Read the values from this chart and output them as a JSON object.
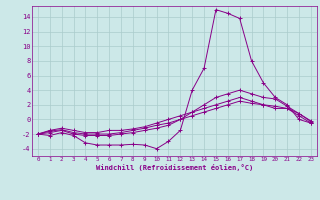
{
  "background_color": "#cce8e8",
  "grid_color": "#aacccc",
  "line_color": "#880088",
  "title": "Windchill (Refroidissement éolien,°C)",
  "xlim": [
    -0.5,
    23.5
  ],
  "ylim": [
    -5,
    15.5
  ],
  "xticks": [
    0,
    1,
    2,
    3,
    4,
    5,
    6,
    7,
    8,
    9,
    10,
    11,
    12,
    13,
    14,
    15,
    16,
    17,
    18,
    19,
    20,
    21,
    22,
    23
  ],
  "yticks": [
    -4,
    -2,
    0,
    2,
    4,
    6,
    8,
    10,
    12,
    14
  ],
  "series": [
    {
      "x": [
        0,
        1,
        2,
        3,
        4,
        5,
        6,
        7,
        8,
        9,
        10,
        11,
        12,
        13,
        14,
        15,
        16,
        17,
        18,
        19,
        20,
        21,
        22,
        23
      ],
      "y": [
        -2,
        -2.2,
        -1.8,
        -2.2,
        -3.2,
        -3.5,
        -3.5,
        -3.5,
        -3.4,
        -3.5,
        -4,
        -3,
        -1.5,
        4,
        7,
        15,
        14.5,
        13.8,
        8,
        5,
        3,
        2,
        0,
        -0.5
      ]
    },
    {
      "x": [
        0,
        1,
        2,
        3,
        4,
        5,
        6,
        7,
        8,
        9,
        10,
        11,
        12,
        13,
        14,
        15,
        16,
        17,
        18,
        19,
        20,
        21,
        22,
        23
      ],
      "y": [
        -2,
        -1.8,
        -1.5,
        -2,
        -2.2,
        -2.2,
        -2.2,
        -2.0,
        -1.8,
        -1.5,
        -1.2,
        -0.8,
        0,
        1,
        2,
        3,
        3.5,
        4,
        3.5,
        3,
        2.8,
        1.8,
        0.8,
        -0.3
      ]
    },
    {
      "x": [
        0,
        1,
        2,
        3,
        4,
        5,
        6,
        7,
        8,
        9,
        10,
        11,
        12,
        13,
        14,
        15,
        16,
        17,
        18,
        19,
        20,
        21,
        22,
        23
      ],
      "y": [
        -2,
        -1.6,
        -1.4,
        -1.8,
        -2.0,
        -2.0,
        -2.0,
        -1.8,
        -1.5,
        -1.2,
        -0.8,
        -0.5,
        0,
        0.5,
        1.0,
        1.5,
        2.0,
        2.5,
        2.2,
        2.0,
        1.8,
        1.5,
        0.8,
        -0.2
      ]
    },
    {
      "x": [
        0,
        1,
        2,
        3,
        4,
        5,
        6,
        7,
        8,
        9,
        10,
        11,
        12,
        13,
        14,
        15,
        16,
        17,
        18,
        19,
        20,
        21,
        22,
        23
      ],
      "y": [
        -2,
        -1.5,
        -1.2,
        -1.5,
        -1.8,
        -1.8,
        -1.5,
        -1.5,
        -1.3,
        -1,
        -0.5,
        0,
        0.5,
        1,
        1.5,
        2,
        2.5,
        3,
        2.5,
        2,
        1.5,
        1.5,
        0.5,
        -0.5
      ]
    }
  ]
}
